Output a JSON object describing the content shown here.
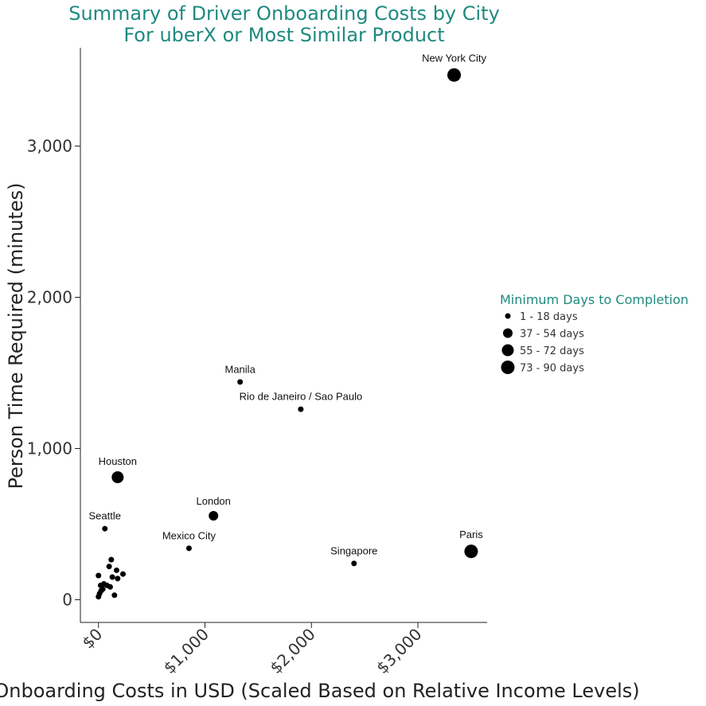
{
  "chart_data": {
    "type": "scatter",
    "title": [
      "Summary of Driver Onboarding Costs by City",
      "For uberX or Most Similar Product"
    ],
    "xlabel": "Onboarding Costs in USD (Scaled Based on Relative Income Levels)",
    "ylabel": "Person Time Required (minutes)",
    "xlim": [
      -170,
      3650
    ],
    "ylim": [
      -150,
      3650
    ],
    "x_ticks": [
      {
        "value": 0,
        "label": "$0"
      },
      {
        "value": 1000,
        "label": "$1,000"
      },
      {
        "value": 2000,
        "label": "$2,000"
      },
      {
        "value": 3000,
        "label": "$3,000"
      }
    ],
    "y_ticks": [
      {
        "value": 0,
        "label": "0"
      },
      {
        "value": 1000,
        "label": "1,000"
      },
      {
        "value": 2000,
        "label": "2,000"
      },
      {
        "value": 3000,
        "label": "3,000"
      }
    ],
    "grid": false,
    "legend": {
      "title": "Minimum Days to Completion",
      "placement": "right",
      "entries": [
        "1 - 18 days",
        "37 - 54 days",
        "55 - 72 days",
        "73 - 90 days"
      ]
    },
    "points": [
      {
        "label": "New York City",
        "x": 3340,
        "y": 3470,
        "size_class": 3
      },
      {
        "label": "Manila",
        "x": 1330,
        "y": 1440,
        "size_class": 0
      },
      {
        "label": "Rio de Janeiro / Sao Paulo",
        "x": 1900,
        "y": 1260,
        "size_class": 0
      },
      {
        "label": "Houston",
        "x": 180,
        "y": 810,
        "size_class": 2
      },
      {
        "label": "London",
        "x": 1080,
        "y": 555,
        "size_class": 1
      },
      {
        "label": "Seattle",
        "x": 60,
        "y": 470,
        "size_class": 0
      },
      {
        "label": "Mexico City",
        "x": 850,
        "y": 340,
        "size_class": 0
      },
      {
        "label": "Singapore",
        "x": 2400,
        "y": 240,
        "size_class": 0
      },
      {
        "label": "Paris",
        "x": 3500,
        "y": 320,
        "size_class": 3
      },
      {
        "label": "",
        "x": 120,
        "y": 265,
        "size_class": 0
      },
      {
        "label": "",
        "x": 100,
        "y": 220,
        "size_class": 0
      },
      {
        "label": "",
        "x": 170,
        "y": 195,
        "size_class": 0
      },
      {
        "label": "",
        "x": 0,
        "y": 160,
        "size_class": 0
      },
      {
        "label": "",
        "x": 230,
        "y": 170,
        "size_class": 0
      },
      {
        "label": "",
        "x": 130,
        "y": 150,
        "size_class": 0
      },
      {
        "label": "",
        "x": 180,
        "y": 140,
        "size_class": 0
      },
      {
        "label": "",
        "x": 50,
        "y": 105,
        "size_class": 0
      },
      {
        "label": "",
        "x": 20,
        "y": 95,
        "size_class": 0
      },
      {
        "label": "",
        "x": 80,
        "y": 95,
        "size_class": 0
      },
      {
        "label": "",
        "x": 110,
        "y": 85,
        "size_class": 0
      },
      {
        "label": "",
        "x": 40,
        "y": 70,
        "size_class": 0
      },
      {
        "label": "",
        "x": 25,
        "y": 60,
        "size_class": 0
      },
      {
        "label": "",
        "x": 10,
        "y": 40,
        "size_class": 0
      },
      {
        "label": "",
        "x": 150,
        "y": 30,
        "size_class": 0
      },
      {
        "label": "",
        "x": 0,
        "y": 20,
        "size_class": 0
      }
    ]
  },
  "colors": {
    "title": "#1f8a80",
    "point": "#000000",
    "axis": "#222222"
  }
}
